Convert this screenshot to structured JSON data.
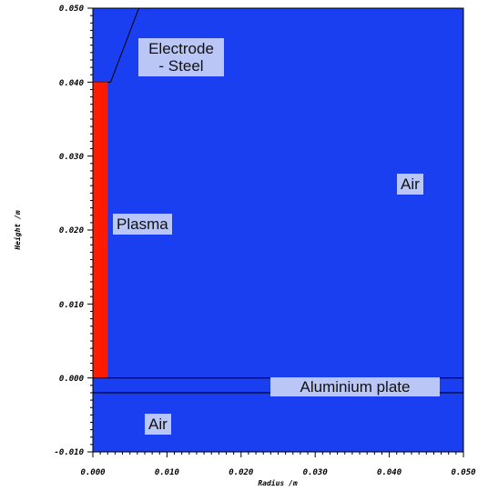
{
  "axes": {
    "xlabel": "Radius /m",
    "ylabel": "Height /m",
    "xlim": [
      0.0,
      0.05
    ],
    "ylim": [
      -0.01,
      0.05
    ],
    "x_ticks": [
      "0.000",
      "0.010",
      "0.020",
      "0.030",
      "0.040",
      "0.050"
    ],
    "y_ticks": [
      "0.050",
      "0.040",
      "0.030",
      "0.020",
      "0.010",
      "0.000",
      "-0.010"
    ]
  },
  "colors": {
    "region_fill": "#1a3ff0",
    "plasma_fill": "#ff1a00",
    "label_background": "#b9c6f6",
    "boundary_line": "#000000"
  },
  "labels": {
    "electrode": "Electrode\n- Steel",
    "air_upper": "Air",
    "plasma": "Plasma",
    "aluminium_plate": "Aluminium plate",
    "air_lower": "Air"
  },
  "geometry": {
    "plasma": {
      "r": [
        0.0,
        0.002
      ],
      "z": [
        0.0,
        0.04
      ]
    },
    "electrode_polygon_rz": [
      [
        0.0,
        0.05
      ],
      [
        0.0062,
        0.05
      ],
      [
        0.0024,
        0.04
      ],
      [
        0.0,
        0.04
      ]
    ],
    "aluminium_plate": {
      "r": [
        0.0,
        0.05
      ],
      "z": [
        -0.002,
        0.0
      ]
    }
  }
}
